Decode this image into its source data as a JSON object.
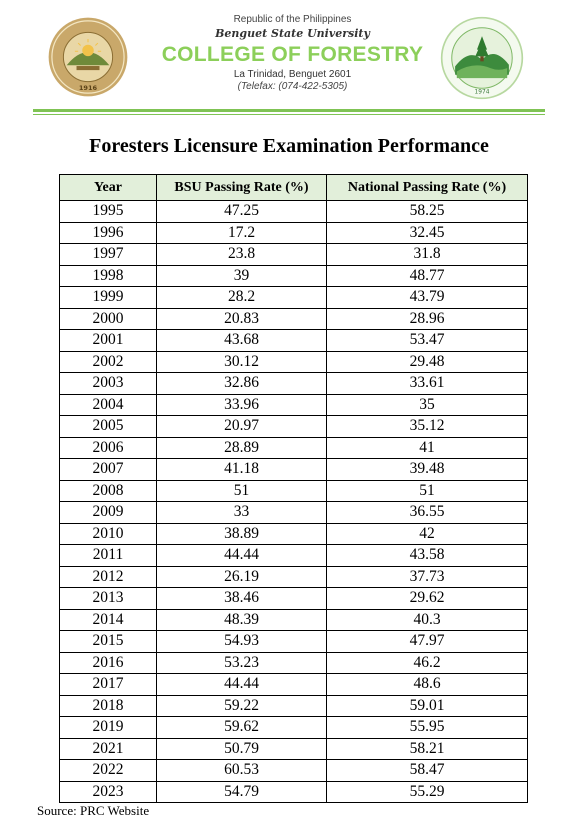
{
  "header": {
    "republic": "Republic of the Philippines",
    "university": "Benguet State University",
    "college": "COLLEGE OF FORESTRY",
    "address": "La Trinidad, Benguet 2601",
    "telefax": "(Telefax: (074-422-5305)",
    "left_seal": {
      "icon": "bsu-seal-icon",
      "text": "BENGUET STATE UNIVERSITY",
      "year": "1916",
      "colors": {
        "ring": "#c9a86a",
        "inner": "#e9d7a6",
        "emblem": "#6f8a3a"
      }
    },
    "right_seal": {
      "icon": "college-of-forestry-seal-icon",
      "text": "BENGUET STATE UNIVERSITY • COLLEGE OF FORESTRY",
      "year": "1974",
      "colors": {
        "ring": "#b7d8a0",
        "inner": "#e6f2dc",
        "emblem": "#3d8b3d"
      }
    },
    "rule_color": "#7fc354",
    "college_color": "#8ccf5a"
  },
  "title": "Foresters Licensure Examination Performance",
  "table": {
    "header_bg": "#e2efda",
    "columns": [
      "Year",
      "BSU Passing Rate (%)",
      "National Passing Rate (%)"
    ],
    "rows": [
      [
        "1995",
        "47.25",
        "58.25"
      ],
      [
        "1996",
        "17.2",
        "32.45"
      ],
      [
        "1997",
        "23.8",
        "31.8"
      ],
      [
        "1998",
        "39",
        "48.77"
      ],
      [
        "1999",
        "28.2",
        "43.79"
      ],
      [
        "2000",
        "20.83",
        "28.96"
      ],
      [
        "2001",
        "43.68",
        "53.47"
      ],
      [
        "2002",
        "30.12",
        "29.48"
      ],
      [
        "2003",
        "32.86",
        "33.61"
      ],
      [
        "2004",
        "33.96",
        "35"
      ],
      [
        "2005",
        "20.97",
        "35.12"
      ],
      [
        "2006",
        "28.89",
        "41"
      ],
      [
        "2007",
        "41.18",
        "39.48"
      ],
      [
        "2008",
        "51",
        "51"
      ],
      [
        "2009",
        "33",
        "36.55"
      ],
      [
        "2010",
        "38.89",
        "42"
      ],
      [
        "2011",
        "44.44",
        "43.58"
      ],
      [
        "2012",
        "26.19",
        "37.73"
      ],
      [
        "2013",
        "38.46",
        "29.62"
      ],
      [
        "2014",
        "48.39",
        "40.3"
      ],
      [
        "2015",
        "54.93",
        "47.97"
      ],
      [
        "2016",
        "53.23",
        "46.2"
      ],
      [
        "2017",
        "44.44",
        "48.6"
      ],
      [
        "2018",
        "59.22",
        "59.01"
      ],
      [
        "2019",
        "59.62",
        "55.95"
      ],
      [
        "2021",
        "50.79",
        "58.21"
      ],
      [
        "2022",
        "60.53",
        "58.47"
      ],
      [
        "2023",
        "54.79",
        "55.29"
      ]
    ]
  },
  "source": "Source: PRC Website"
}
